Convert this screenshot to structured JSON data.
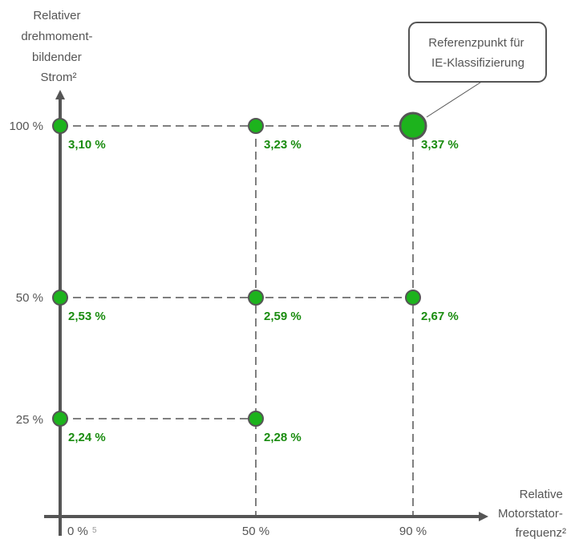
{
  "chart_data": {
    "type": "scatter",
    "y_axis": {
      "label_lines": [
        "Relativer",
        "drehmoment-",
        "bildender",
        "Strom²"
      ],
      "ticks": [
        {
          "value": 100,
          "label": "100 %"
        },
        {
          "value": 50,
          "label": "50 %"
        },
        {
          "value": 25,
          "label": "25 %"
        }
      ]
    },
    "x_axis": {
      "label_lines": [
        "Relative",
        "Motorstator-",
        "frequenz²"
      ],
      "ticks": [
        {
          "value": 0,
          "label": "0 %",
          "footnote": "5"
        },
        {
          "value": 50,
          "label": "50 %"
        },
        {
          "value": 90,
          "label": "90 %"
        }
      ]
    },
    "points": [
      {
        "x": 0,
        "y": 100,
        "label": "3,10 %"
      },
      {
        "x": 50,
        "y": 100,
        "label": "3,23 %"
      },
      {
        "x": 90,
        "y": 100,
        "label": "3,37 %",
        "reference": true
      },
      {
        "x": 0,
        "y": 50,
        "label": "2,53 %"
      },
      {
        "x": 50,
        "y": 50,
        "label": "2,59 %"
      },
      {
        "x": 90,
        "y": 50,
        "label": "2,67 %"
      },
      {
        "x": 0,
        "y": 25,
        "label": "2,24 %"
      },
      {
        "x": 50,
        "y": 25,
        "label": "2,28 %"
      }
    ],
    "annotation": {
      "lines": [
        "Referenzpunkt für",
        "IE-Klassifizierung"
      ]
    },
    "grid": "dashed"
  },
  "colors": {
    "axis": "#555555",
    "point_fill": "#1db31d",
    "point_stroke": "#555555",
    "value_text": "#1a8c10",
    "grid": "#555555"
  }
}
